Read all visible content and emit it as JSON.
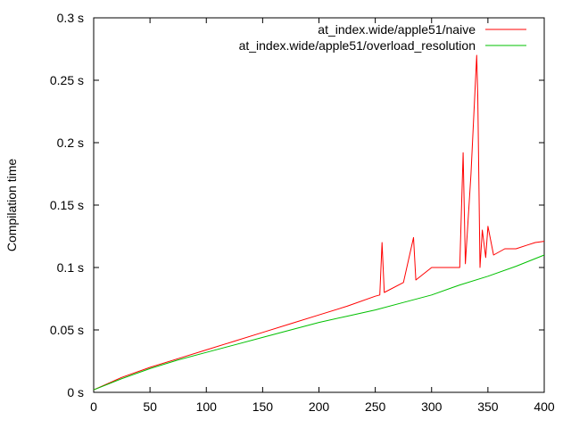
{
  "chart_data": {
    "type": "line",
    "title": "",
    "xlabel": "",
    "ylabel": "Compilation time",
    "xlim": [
      0,
      400
    ],
    "ylim": [
      0,
      0.3
    ],
    "x_ticks": [
      0,
      50,
      100,
      150,
      200,
      250,
      300,
      350,
      400
    ],
    "y_ticks": [
      {
        "value": 0,
        "label": "0 s"
      },
      {
        "value": 0.05,
        "label": "0.05 s"
      },
      {
        "value": 0.1,
        "label": "0.1 s"
      },
      {
        "value": 0.15,
        "label": "0.15 s"
      },
      {
        "value": 0.2,
        "label": "0.2 s"
      },
      {
        "value": 0.25,
        "label": "0.25 s"
      },
      {
        "value": 0.3,
        "label": "0.3 s"
      }
    ],
    "grid": false,
    "legend_position": "top-right",
    "series": [
      {
        "name": "at_index.wide/apple51/naive",
        "color": "#ff0000",
        "x": [
          0,
          25,
          50,
          75,
          100,
          125,
          150,
          175,
          200,
          225,
          250,
          254,
          256,
          258,
          275,
          284,
          286,
          300,
          325,
          328,
          330,
          335,
          340,
          341,
          343,
          345,
          348,
          350,
          355,
          365,
          375,
          385,
          392,
          400
        ],
        "y": [
          0.002,
          0.012,
          0.02,
          0.027,
          0.034,
          0.041,
          0.048,
          0.055,
          0.062,
          0.069,
          0.077,
          0.078,
          0.12,
          0.08,
          0.088,
          0.124,
          0.09,
          0.1,
          0.1,
          0.192,
          0.103,
          0.175,
          0.27,
          0.238,
          0.1,
          0.13,
          0.108,
          0.133,
          0.11,
          0.115,
          0.115,
          0.118,
          0.12,
          0.121
        ]
      },
      {
        "name": "at_index.wide/apple51/overload_resolution",
        "color": "#00c000",
        "x": [
          0,
          25,
          50,
          75,
          100,
          125,
          150,
          175,
          200,
          225,
          250,
          275,
          300,
          325,
          350,
          375,
          400
        ],
        "y": [
          0.002,
          0.011,
          0.019,
          0.026,
          0.032,
          0.038,
          0.044,
          0.05,
          0.056,
          0.061,
          0.066,
          0.072,
          0.078,
          0.086,
          0.093,
          0.101,
          0.11
        ]
      }
    ]
  }
}
